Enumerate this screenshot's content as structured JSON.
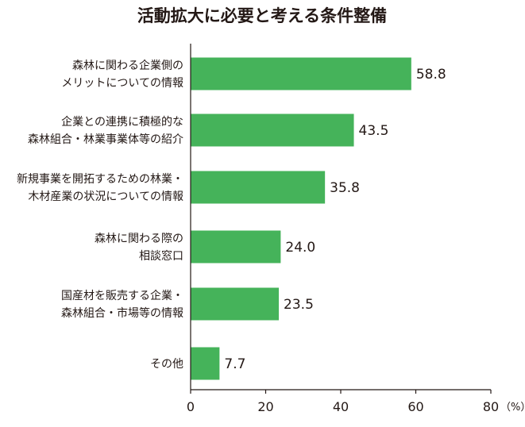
{
  "chart_data": {
    "type": "bar",
    "orientation": "horizontal",
    "title": "活動拡大に必要と考える条件整備",
    "categories": [
      [
        "森林に関わる企業側の",
        "メリットについての情報"
      ],
      [
        "企業との連携に積極的な",
        "森林組合・林業事業体等の紹介"
      ],
      [
        "新規事業を開拓するための林業・",
        "木材産業の状況についての情報"
      ],
      [
        "森林に関わる際の",
        "相談窓口"
      ],
      [
        "国産材を販売する企業・",
        "森林組合・市場等の情報"
      ],
      [
        "その他"
      ]
    ],
    "values": [
      58.8,
      43.5,
      35.8,
      24.0,
      23.5,
      7.7
    ],
    "value_labels": [
      "58.8",
      "43.5",
      "35.8",
      "24.0",
      "23.5",
      "7.7"
    ],
    "x_ticks": [
      "0",
      "20",
      "40",
      "60",
      "80"
    ],
    "x_unit": "（%）",
    "xlim": [
      0,
      80
    ],
    "bar_color": "#45b35a",
    "axis_color": "#231815",
    "grid": false,
    "legend": false
  }
}
